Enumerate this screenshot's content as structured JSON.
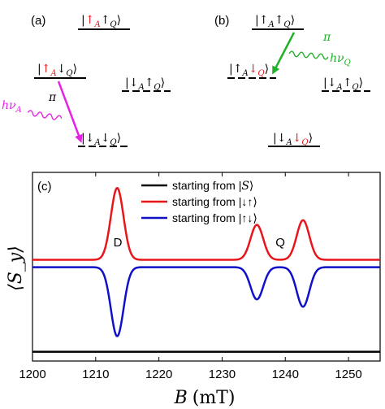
{
  "panel_a": {
    "label": "(a)",
    "ket_top": {
      "bra_l": "|",
      "s1": "↑",
      "sub1": "A",
      "s2": "↑",
      "sub2": "Q",
      "bra_r": "⟩"
    },
    "ket_mid": {
      "bra_l": "|",
      "s1": "↑",
      "sub1": "A",
      "s2": "↓",
      "sub2": "Q",
      "bra_r": "⟩"
    },
    "ket_right": {
      "bra_l": "|",
      "s1": "↓",
      "sub1": "A",
      "s2": "↑",
      "sub2": "Q",
      "bra_r": "⟩"
    },
    "ket_bottom": {
      "bra_l": "|",
      "s1": "↓",
      "sub1": "A",
      "s2": "↓",
      "sub2": "Q",
      "bra_r": "⟩"
    },
    "photon": "hν",
    "photon_sub": "A",
    "pi": "π"
  },
  "panel_b": {
    "label": "(b)",
    "ket_top": {
      "bra_l": "|",
      "s1": "↑",
      "sub1": "A",
      "s2": "↑",
      "sub2": "Q",
      "bra_r": "⟩"
    },
    "ket_mid": {
      "bra_l": "|",
      "s1": "↑",
      "sub1": "A",
      "s2": "↓",
      "sub2": "Q",
      "bra_r": "⟩"
    },
    "ket_right": {
      "bra_l": "|",
      "s1": "↓",
      "sub1": "A",
      "s2": "↑",
      "sub2": "Q",
      "bra_r": "⟩"
    },
    "ket_bottom": {
      "bra_l": "|",
      "s1": "↓",
      "sub1": "A",
      "s2": "↓",
      "sub2": "Q",
      "bra_r": "⟩"
    },
    "photon": "hν",
    "photon_sub": "Q",
    "pi": "π"
  },
  "colors": {
    "red": "#e8151b",
    "blue": "#1010c8",
    "black": "#000000",
    "magenta": "#e622e6",
    "green": "#22b02a"
  },
  "chart_data": {
    "type": "line",
    "panel_label": "(c)",
    "xlabel": "B (mT)",
    "xlabel_var": "B",
    "xlabel_unit": "(mT)",
    "ylabel": "⟨S_y⟩",
    "xlim": [
      1200,
      1255
    ],
    "x_ticks": [
      1200,
      1210,
      1220,
      1230,
      1240,
      1250
    ],
    "legend_position": "top-center",
    "annotations": [
      {
        "text": "D",
        "x": 1213.5
      },
      {
        "text": "Q",
        "x": 1239.2
      }
    ],
    "series": [
      {
        "name": "starting from |S⟩",
        "color": "#000000",
        "baseline": -1.0,
        "peaks": []
      },
      {
        "name": "starting from |↓↑⟩",
        "color": "#e8151b",
        "baseline": 0.0,
        "peaks": [
          {
            "center": 1213.4,
            "amplitude": 0.78,
            "width": 1.0
          },
          {
            "center": 1235.5,
            "amplitude": 0.38,
            "width": 1.0
          },
          {
            "center": 1242.8,
            "amplitude": 0.43,
            "width": 1.0
          }
        ]
      },
      {
        "name": "starting from |↑↓⟩",
        "color": "#1010c8",
        "baseline": -0.08,
        "peaks": [
          {
            "center": 1213.4,
            "amplitude": -0.75,
            "width": 1.0
          },
          {
            "center": 1235.5,
            "amplitude": -0.35,
            "width": 1.0
          },
          {
            "center": 1242.8,
            "amplitude": -0.43,
            "width": 1.0
          }
        ]
      }
    ],
    "legend_entries": [
      {
        "pre": "starting from |",
        "sym": "S",
        "post": "⟩"
      },
      {
        "pre": "starting from |",
        "sym": "↓↑",
        "post": "⟩"
      },
      {
        "pre": "starting from |",
        "sym": "↑↓",
        "post": "⟩"
      }
    ],
    "ylim": [
      -1.1,
      0.95
    ]
  }
}
